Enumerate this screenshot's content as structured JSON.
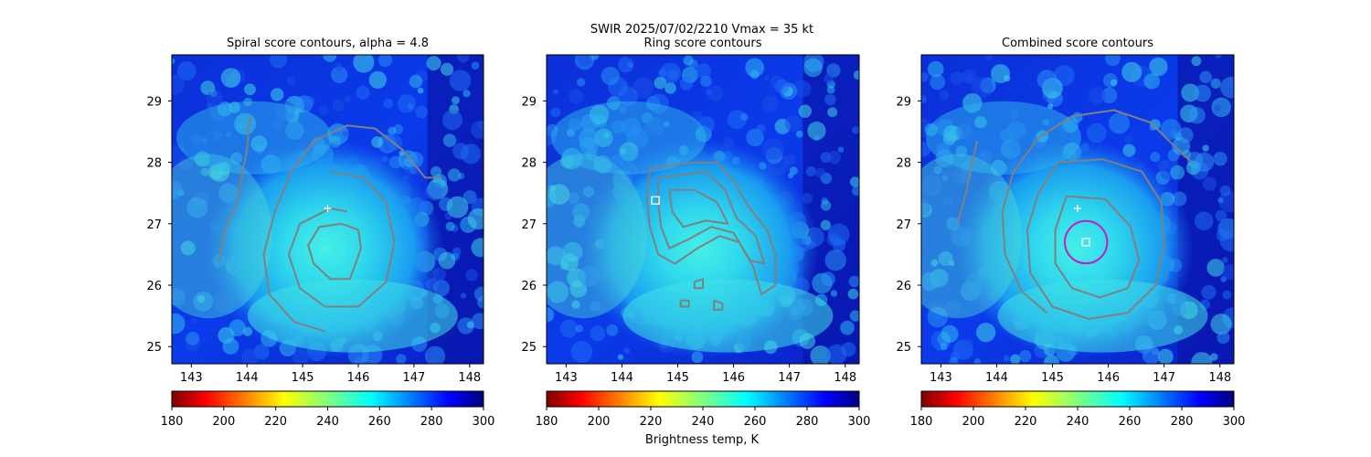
{
  "figure": {
    "suptitle_line1": "SWIR  2025/07/02/2210    Vmax = 35 kt",
    "colorbar_label": "Brightness temp, K"
  },
  "colors": {
    "contour": "#808080",
    "center_plus": "#ffffff",
    "center_square": "#ffffff",
    "combined_circle": "#c020c0",
    "colormap": "jet_r"
  },
  "chart_data": [
    {
      "type": "heatmap",
      "title": "Spiral score contours, alpha =  4.8",
      "xlim": [
        142.65,
        148.25
      ],
      "ylim": [
        24.72,
        29.75
      ],
      "xticks": [
        143,
        144,
        145,
        146,
        147,
        148
      ],
      "yticks": [
        25,
        26,
        27,
        28,
        29
      ],
      "colorbar": {
        "vmin": 180,
        "vmax": 300,
        "ticks": [
          180,
          200,
          220,
          240,
          260,
          280,
          300
        ]
      },
      "markers": [
        {
          "kind": "plus",
          "lon": 145.45,
          "lat": 27.25
        }
      ],
      "contours": [
        {
          "name": "spiral-inner",
          "points": [
            [
              145.7,
              27.0
            ],
            [
              146.0,
              26.9
            ],
            [
              146.05,
              26.6
            ],
            [
              145.85,
              26.1
            ],
            [
              145.5,
              26.1
            ],
            [
              145.2,
              26.35
            ],
            [
              145.1,
              26.65
            ],
            [
              145.3,
              26.95
            ],
            [
              145.7,
              27.0
            ]
          ]
        },
        {
          "name": "spiral-middle",
          "points": [
            [
              145.5,
              27.85
            ],
            [
              146.1,
              27.75
            ],
            [
              146.5,
              27.35
            ],
            [
              146.65,
              26.7
            ],
            [
              146.5,
              26.05
            ],
            [
              146.0,
              25.65
            ],
            [
              145.4,
              25.65
            ],
            [
              144.95,
              25.95
            ],
            [
              144.75,
              26.5
            ],
            [
              144.95,
              27.0
            ],
            [
              145.5,
              27.25
            ],
            [
              145.8,
              27.2
            ]
          ]
        },
        {
          "name": "spiral-outer",
          "points": [
            [
              145.4,
              25.25
            ],
            [
              144.85,
              25.4
            ],
            [
              144.4,
              25.85
            ],
            [
              144.3,
              26.5
            ],
            [
              144.5,
              27.2
            ],
            [
              144.8,
              27.85
            ],
            [
              145.2,
              28.35
            ],
            [
              145.8,
              28.6
            ],
            [
              146.3,
              28.55
            ],
            [
              146.8,
              28.2
            ],
            [
              147.2,
              27.75
            ],
            [
              147.5,
              27.75
            ]
          ]
        },
        {
          "name": "spiral-band",
          "points": [
            [
              144.05,
              28.75
            ],
            [
              144.0,
              28.2
            ],
            [
              143.9,
              27.75
            ],
            [
              143.8,
              27.3
            ],
            [
              143.6,
              26.9
            ],
            [
              143.5,
              26.4
            ]
          ]
        }
      ]
    },
    {
      "type": "heatmap",
      "title": "Ring score contours",
      "xlim": [
        142.65,
        148.25
      ],
      "ylim": [
        24.72,
        29.75
      ],
      "xticks": [
        143,
        144,
        145,
        146,
        147,
        148
      ],
      "yticks": [
        25,
        26,
        27,
        28,
        29
      ],
      "colorbar": {
        "vmin": 180,
        "vmax": 300,
        "ticks": [
          180,
          200,
          220,
          240,
          260,
          280,
          300
        ]
      },
      "markers": [
        {
          "kind": "square",
          "lon": 144.6,
          "lat": 27.38
        }
      ],
      "contours": [
        {
          "name": "ring-outer",
          "points": [
            [
              144.5,
              27.9
            ],
            [
              144.9,
              27.95
            ],
            [
              145.3,
              28.0
            ],
            [
              145.7,
              28.0
            ],
            [
              146.0,
              27.7
            ],
            [
              146.25,
              27.3
            ],
            [
              146.6,
              26.9
            ],
            [
              146.75,
              26.5
            ],
            [
              146.75,
              26.0
            ],
            [
              146.5,
              25.85
            ],
            [
              146.35,
              26.3
            ],
            [
              146.1,
              26.7
            ],
            [
              145.75,
              26.8
            ],
            [
              145.35,
              26.6
            ],
            [
              144.95,
              26.35
            ],
            [
              144.65,
              26.5
            ],
            [
              144.5,
              26.95
            ],
            [
              144.45,
              27.4
            ],
            [
              144.5,
              27.9
            ]
          ]
        },
        {
          "name": "ring-mid",
          "points": [
            [
              144.65,
              27.75
            ],
            [
              145.1,
              27.8
            ],
            [
              145.5,
              27.85
            ],
            [
              145.85,
              27.55
            ],
            [
              146.05,
              27.1
            ],
            [
              146.4,
              26.8
            ],
            [
              146.55,
              26.35
            ],
            [
              146.3,
              26.4
            ],
            [
              146.0,
              26.85
            ],
            [
              145.6,
              26.95
            ],
            [
              145.2,
              26.75
            ],
            [
              144.85,
              26.6
            ],
            [
              144.7,
              26.95
            ],
            [
              144.65,
              27.35
            ],
            [
              144.65,
              27.75
            ]
          ]
        },
        {
          "name": "ring-inner",
          "points": [
            [
              144.85,
              27.55
            ],
            [
              145.3,
              27.55
            ],
            [
              145.7,
              27.35
            ],
            [
              145.9,
              27.0
            ],
            [
              145.5,
              27.05
            ],
            [
              145.1,
              26.95
            ],
            [
              144.9,
              27.2
            ],
            [
              144.85,
              27.55
            ]
          ]
        },
        {
          "name": "ring-speck-1",
          "points": [
            [
              145.65,
              25.75
            ],
            [
              145.8,
              25.7
            ],
            [
              145.8,
              25.6
            ],
            [
              145.65,
              25.6
            ],
            [
              145.65,
              25.75
            ]
          ]
        },
        {
          "name": "ring-speck-2",
          "points": [
            [
              145.3,
              26.05
            ],
            [
              145.45,
              26.1
            ],
            [
              145.45,
              25.95
            ],
            [
              145.3,
              25.95
            ],
            [
              145.3,
              26.05
            ]
          ]
        },
        {
          "name": "ring-speck-3",
          "points": [
            [
              145.05,
              25.75
            ],
            [
              145.2,
              25.75
            ],
            [
              145.2,
              25.65
            ],
            [
              145.05,
              25.65
            ],
            [
              145.05,
              25.75
            ]
          ]
        }
      ]
    },
    {
      "type": "heatmap",
      "title": "Combined score contours",
      "xlim": [
        142.65,
        148.25
      ],
      "ylim": [
        24.72,
        29.75
      ],
      "xticks": [
        143,
        144,
        145,
        146,
        147,
        148
      ],
      "yticks": [
        25,
        26,
        27,
        28,
        29
      ],
      "colorbar": {
        "vmin": 180,
        "vmax": 300,
        "ticks": [
          180,
          200,
          220,
          240,
          260,
          280,
          300
        ]
      },
      "markers": [
        {
          "kind": "plus",
          "lon": 145.45,
          "lat": 27.25
        },
        {
          "kind": "square",
          "lon": 145.6,
          "lat": 26.7
        },
        {
          "kind": "circle",
          "lon": 145.6,
          "lat": 26.7,
          "radius_deg": 0.38
        }
      ],
      "contours": [
        {
          "name": "combined-inner",
          "points": [
            [
              145.25,
              27.45
            ],
            [
              145.95,
              27.4
            ],
            [
              146.4,
              26.95
            ],
            [
              146.55,
              26.4
            ],
            [
              146.35,
              25.95
            ],
            [
              145.85,
              25.8
            ],
            [
              145.35,
              25.95
            ],
            [
              145.05,
              26.35
            ],
            [
              145.05,
              26.9
            ],
            [
              145.25,
              27.45
            ]
          ]
        },
        {
          "name": "combined-middle",
          "points": [
            [
              145.1,
              28.0
            ],
            [
              145.9,
              28.05
            ],
            [
              146.6,
              27.85
            ],
            [
              146.95,
              27.35
            ],
            [
              147.0,
              26.65
            ],
            [
              146.85,
              26.0
            ],
            [
              146.35,
              25.55
            ],
            [
              145.65,
              25.45
            ],
            [
              145.0,
              25.65
            ],
            [
              144.6,
              26.2
            ],
            [
              144.55,
              26.9
            ],
            [
              144.75,
              27.5
            ],
            [
              145.1,
              28.0
            ]
          ]
        },
        {
          "name": "combined-outer",
          "points": [
            [
              144.9,
              25.55
            ],
            [
              144.45,
              25.9
            ],
            [
              144.15,
              26.5
            ],
            [
              144.1,
              27.2
            ],
            [
              144.3,
              27.85
            ],
            [
              144.75,
              28.4
            ],
            [
              145.35,
              28.75
            ],
            [
              146.1,
              28.85
            ],
            [
              146.75,
              28.65
            ],
            [
              147.2,
              28.25
            ],
            [
              147.5,
              28.0
            ]
          ]
        },
        {
          "name": "combined-band",
          "points": [
            [
              143.65,
              28.35
            ],
            [
              143.55,
              27.95
            ],
            [
              143.45,
              27.5
            ],
            [
              143.3,
              27.0
            ]
          ]
        }
      ]
    }
  ]
}
